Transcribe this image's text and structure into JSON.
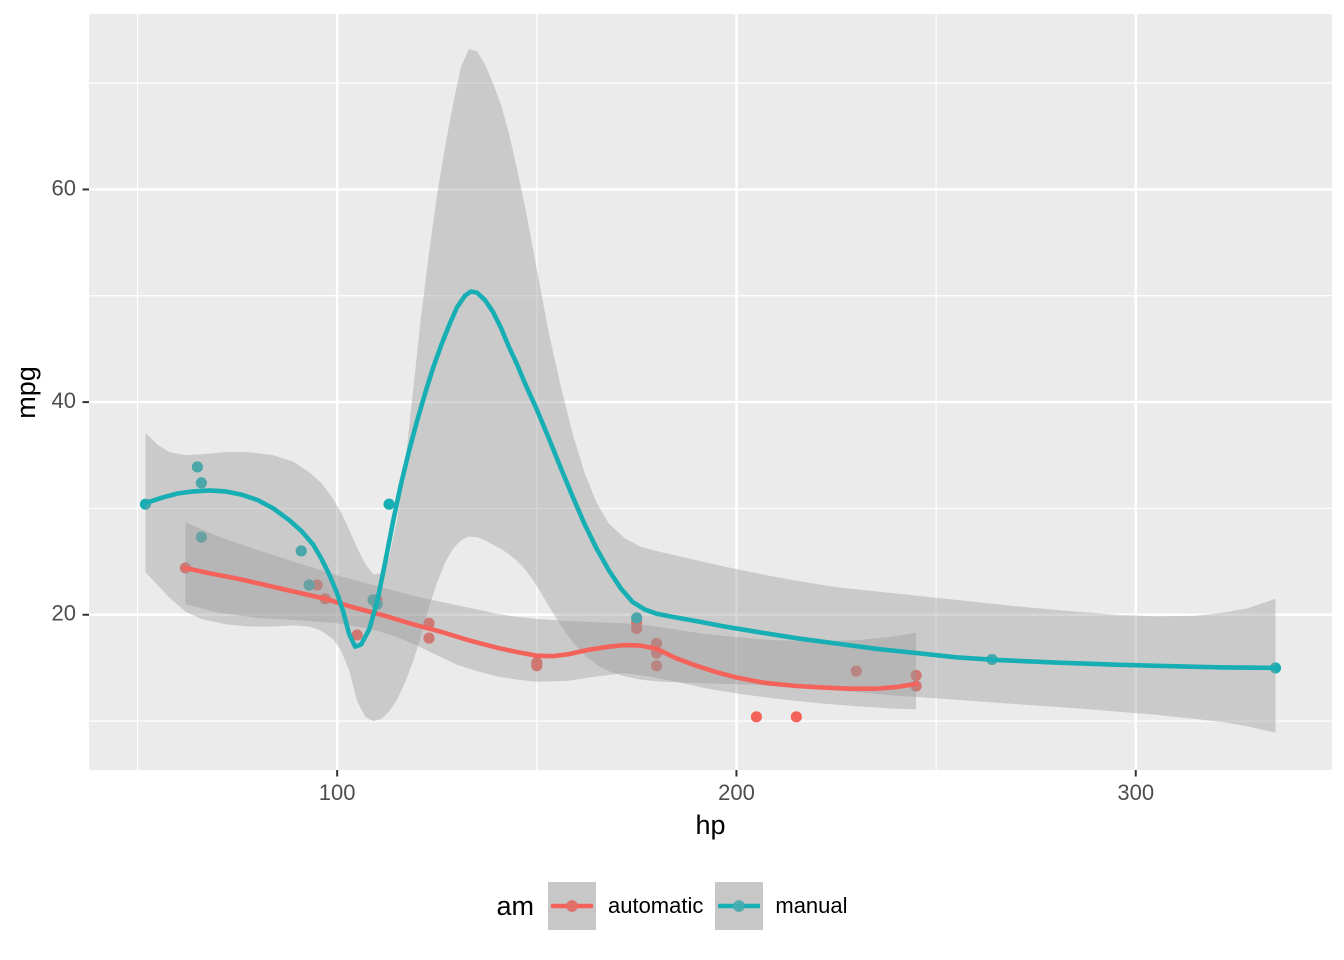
{
  "figure": {
    "background": "#ffffff"
  },
  "chart_data": {
    "type": "scatter",
    "title": "",
    "xlabel": "hp",
    "ylabel": "mpg",
    "xlim": [
      37.85,
      349.15
    ],
    "ylim": [
      5.4,
      76.5
    ],
    "x_major_ticks": [
      100,
      200,
      300
    ],
    "y_major_ticks": [
      20,
      40,
      60
    ],
    "x_minor_ticks": [
      50,
      150,
      250
    ],
    "y_minor_ticks": [
      10,
      30,
      50,
      70
    ],
    "grid": "on",
    "panel_bg": "#EBEBEB",
    "grid_color": "#FFFFFF",
    "ribbon_color": "#999999",
    "ribbon_alpha": 0.4,
    "tick_label_color": "#4D4D4D",
    "tick_mark_color": "#333333",
    "legend": {
      "title": "am",
      "position": "bottom",
      "key_bg": "#C7C7C7",
      "entries": [
        {
          "label": "automatic",
          "color": "#F3635B",
          "dot_color": "#DE7169"
        },
        {
          "label": "manual",
          "color": "#17AFB3",
          "dot_color": "#4FADB0"
        }
      ]
    },
    "series": [
      {
        "name": "automatic",
        "color": "#F3635B",
        "points": [
          [
            62,
            24.4
          ],
          [
            95,
            22.8
          ],
          [
            97,
            21.5
          ],
          [
            105,
            18.1
          ],
          [
            110,
            21.4
          ],
          [
            123,
            19.2
          ],
          [
            123,
            17.8
          ],
          [
            150,
            15.5
          ],
          [
            150,
            15.2
          ],
          [
            175,
            18.7
          ],
          [
            175,
            19.2
          ],
          [
            180,
            16.4
          ],
          [
            180,
            17.3
          ],
          [
            180,
            15.2
          ],
          [
            205,
            10.4
          ],
          [
            215,
            10.4
          ],
          [
            230,
            14.7
          ],
          [
            245,
            14.3
          ],
          [
            245,
            13.3
          ]
        ],
        "smooth_line": [
          [
            62,
            24.4
          ],
          [
            68,
            23.9
          ],
          [
            75,
            23.4
          ],
          [
            82,
            22.8
          ],
          [
            90,
            22.1
          ],
          [
            97,
            21.5
          ],
          [
            105,
            20.6
          ],
          [
            112,
            19.9
          ],
          [
            119,
            19.1
          ],
          [
            126,
            18.4
          ],
          [
            133,
            17.6
          ],
          [
            140,
            16.9
          ],
          [
            145,
            16.5
          ],
          [
            150,
            16.15
          ],
          [
            154,
            16.1
          ],
          [
            158,
            16.3
          ],
          [
            163,
            16.7
          ],
          [
            168,
            17.0
          ],
          [
            172,
            17.15
          ],
          [
            176,
            17.1
          ],
          [
            180,
            16.8
          ],
          [
            185,
            15.9
          ],
          [
            190,
            15.2
          ],
          [
            195,
            14.6
          ],
          [
            200,
            14.1
          ],
          [
            207,
            13.6
          ],
          [
            215,
            13.3
          ],
          [
            222,
            13.15
          ],
          [
            228,
            13.05
          ],
          [
            235,
            13.05
          ],
          [
            240,
            13.2
          ],
          [
            245,
            13.5
          ]
        ],
        "ribbon_upper": [
          [
            62,
            28.7
          ],
          [
            70,
            27.4
          ],
          [
            80,
            26.1
          ],
          [
            90,
            24.9
          ],
          [
            100,
            23.7
          ],
          [
            105,
            23.2
          ],
          [
            110,
            22.7
          ],
          [
            115,
            22.2
          ],
          [
            120,
            21.7
          ],
          [
            125,
            21.3
          ],
          [
            130,
            20.9
          ],
          [
            135,
            20.5
          ],
          [
            140,
            20.1
          ],
          [
            145,
            19.8
          ],
          [
            150,
            19.6
          ],
          [
            158,
            19.4
          ],
          [
            165,
            19.3
          ],
          [
            172,
            19.2
          ],
          [
            178,
            19.0
          ],
          [
            185,
            18.6
          ],
          [
            192,
            18.2
          ],
          [
            200,
            17.9
          ],
          [
            210,
            17.6
          ],
          [
            220,
            17.5
          ],
          [
            230,
            17.6
          ],
          [
            238,
            17.9
          ],
          [
            245,
            18.3
          ]
        ],
        "ribbon_lower": [
          [
            62,
            21.0
          ],
          [
            70,
            20.2
          ],
          [
            80,
            19.7
          ],
          [
            90,
            19.5
          ],
          [
            100,
            19.2
          ],
          [
            105,
            18.9
          ],
          [
            110,
            18.5
          ],
          [
            115,
            17.9
          ],
          [
            120,
            17.1
          ],
          [
            125,
            16.2
          ],
          [
            130,
            15.3
          ],
          [
            135,
            14.7
          ],
          [
            140,
            14.2
          ],
          [
            145,
            13.9
          ],
          [
            150,
            13.7
          ],
          [
            158,
            13.8
          ],
          [
            165,
            14.2
          ],
          [
            172,
            14.5
          ],
          [
            178,
            14.2
          ],
          [
            185,
            13.7
          ],
          [
            192,
            13.1
          ],
          [
            200,
            12.6
          ],
          [
            210,
            12.1
          ],
          [
            220,
            11.7
          ],
          [
            230,
            11.4
          ],
          [
            238,
            11.2
          ],
          [
            245,
            11.1
          ]
        ]
      },
      {
        "name": "manual",
        "color": "#17AFB3",
        "points": [
          [
            52,
            30.4
          ],
          [
            65,
            33.9
          ],
          [
            66,
            32.4
          ],
          [
            66,
            27.3
          ],
          [
            91,
            26.0
          ],
          [
            93,
            22.8
          ],
          [
            109,
            21.4
          ],
          [
            110,
            21.0
          ],
          [
            110,
            21.0
          ],
          [
            113,
            30.4
          ],
          [
            175,
            19.7
          ],
          [
            264,
            15.8
          ],
          [
            335,
            15.0
          ]
        ],
        "smooth_line": [
          [
            52,
            30.5
          ],
          [
            56,
            31.0
          ],
          [
            60,
            31.4
          ],
          [
            64,
            31.6
          ],
          [
            68,
            31.7
          ],
          [
            72,
            31.6
          ],
          [
            76,
            31.3
          ],
          [
            80,
            30.8
          ],
          [
            84,
            30.0
          ],
          [
            88,
            28.9
          ],
          [
            91,
            27.9
          ],
          [
            94,
            26.6
          ],
          [
            96,
            25.3
          ],
          [
            98,
            23.8
          ],
          [
            100,
            22.0
          ],
          [
            101.5,
            20.3
          ],
          [
            103,
            18.2
          ],
          [
            104.5,
            17.0
          ],
          [
            106,
            17.2
          ],
          [
            108,
            18.6
          ],
          [
            110,
            21.2
          ],
          [
            112,
            24.9
          ],
          [
            114,
            28.8
          ],
          [
            116,
            32.3
          ],
          [
            118,
            35.4
          ],
          [
            120,
            38.2
          ],
          [
            122,
            40.8
          ],
          [
            124,
            43.2
          ],
          [
            126,
            45.3
          ],
          [
            128,
            47.2
          ],
          [
            130,
            48.9
          ],
          [
            132,
            50.0
          ],
          [
            133.5,
            50.4
          ],
          [
            135,
            50.3
          ],
          [
            137,
            49.6
          ],
          [
            139,
            48.5
          ],
          [
            141,
            47.0
          ],
          [
            143,
            45.2
          ],
          [
            145,
            43.6
          ],
          [
            147,
            41.8
          ],
          [
            150,
            39.3
          ],
          [
            153,
            36.6
          ],
          [
            156,
            33.8
          ],
          [
            159,
            31.1
          ],
          [
            162,
            28.5
          ],
          [
            165,
            26.2
          ],
          [
            168,
            24.2
          ],
          [
            171,
            22.5
          ],
          [
            174,
            21.2
          ],
          [
            177,
            20.5
          ],
          [
            180,
            20.1
          ],
          [
            184,
            19.8
          ],
          [
            190,
            19.4
          ],
          [
            197,
            18.9
          ],
          [
            205,
            18.4
          ],
          [
            215,
            17.8
          ],
          [
            225,
            17.3
          ],
          [
            235,
            16.8
          ],
          [
            245,
            16.4
          ],
          [
            255,
            16.0
          ],
          [
            265,
            15.75
          ],
          [
            280,
            15.5
          ],
          [
            295,
            15.3
          ],
          [
            310,
            15.15
          ],
          [
            322,
            15.05
          ],
          [
            335,
            15.0
          ]
        ],
        "ribbon_upper": [
          [
            52,
            37.1
          ],
          [
            55,
            36.0
          ],
          [
            58,
            35.3
          ],
          [
            62,
            35.0
          ],
          [
            66,
            35.1
          ],
          [
            72,
            35.3
          ],
          [
            78,
            35.3
          ],
          [
            84,
            35.0
          ],
          [
            89,
            34.4
          ],
          [
            93,
            33.4
          ],
          [
            96,
            32.4
          ],
          [
            99,
            30.9
          ],
          [
            101,
            29.6
          ],
          [
            103,
            28.0
          ],
          [
            105,
            26.3
          ],
          [
            107,
            24.8
          ],
          [
            109,
            23.8
          ],
          [
            111,
            23.9
          ],
          [
            113,
            25.4
          ],
          [
            115,
            29.0
          ],
          [
            117,
            34.0
          ],
          [
            119,
            41.0
          ],
          [
            121,
            48.0
          ],
          [
            123,
            54.0
          ],
          [
            125,
            59.5
          ],
          [
            127,
            64.0
          ],
          [
            129,
            68.0
          ],
          [
            131,
            71.5
          ],
          [
            133,
            73.2
          ],
          [
            135,
            73.0
          ],
          [
            137,
            71.8
          ],
          [
            139,
            70.0
          ],
          [
            141,
            68.0
          ],
          [
            143,
            65.3
          ],
          [
            145,
            62.0
          ],
          [
            147,
            58.5
          ],
          [
            149,
            54.5
          ],
          [
            151,
            50.5
          ],
          [
            153,
            46.5
          ],
          [
            156,
            41.5
          ],
          [
            159,
            37.0
          ],
          [
            162,
            33.3
          ],
          [
            165,
            30.5
          ],
          [
            168,
            28.6
          ],
          [
            172,
            27.2
          ],
          [
            176,
            26.4
          ],
          [
            181,
            25.9
          ],
          [
            188,
            25.3
          ],
          [
            196,
            24.6
          ],
          [
            205,
            23.9
          ],
          [
            215,
            23.2
          ],
          [
            225,
            22.6
          ],
          [
            240,
            22.0
          ],
          [
            255,
            21.4
          ],
          [
            270,
            20.8
          ],
          [
            285,
            20.3
          ],
          [
            295,
            20.0
          ],
          [
            305,
            19.85
          ],
          [
            315,
            19.9
          ],
          [
            322,
            20.2
          ],
          [
            328,
            20.6
          ],
          [
            335,
            21.5
          ]
        ],
        "ribbon_lower": [
          [
            52,
            24.0
          ],
          [
            55,
            22.8
          ],
          [
            58,
            21.6
          ],
          [
            62,
            20.3
          ],
          [
            66,
            19.6
          ],
          [
            72,
            19.1
          ],
          [
            78,
            18.9
          ],
          [
            84,
            18.9
          ],
          [
            89,
            19.0
          ],
          [
            93,
            18.9
          ],
          [
            96,
            18.5
          ],
          [
            99,
            17.7
          ],
          [
            101,
            16.6
          ],
          [
            103,
            14.8
          ],
          [
            105,
            11.9
          ],
          [
            107,
            10.4
          ],
          [
            109,
            10.0
          ],
          [
            111,
            10.2
          ],
          [
            113,
            10.9
          ],
          [
            115,
            12.0
          ],
          [
            117,
            13.6
          ],
          [
            119,
            15.6
          ],
          [
            121,
            18.0
          ],
          [
            123,
            20.7
          ],
          [
            125,
            23.0
          ],
          [
            127,
            24.9
          ],
          [
            129,
            26.2
          ],
          [
            131,
            27.0
          ],
          [
            133,
            27.35
          ],
          [
            135,
            27.3
          ],
          [
            137,
            27.0
          ],
          [
            139,
            26.6
          ],
          [
            141,
            26.2
          ],
          [
            143,
            25.7
          ],
          [
            145,
            25.1
          ],
          [
            147,
            24.3
          ],
          [
            149,
            23.3
          ],
          [
            151,
            22.1
          ],
          [
            153,
            20.8
          ],
          [
            156,
            19.0
          ],
          [
            159,
            17.4
          ],
          [
            162,
            16.2
          ],
          [
            165,
            15.3
          ],
          [
            168,
            14.7
          ],
          [
            172,
            14.2
          ],
          [
            176,
            13.9
          ],
          [
            181,
            13.7
          ],
          [
            188,
            13.6
          ],
          [
            196,
            13.5
          ],
          [
            205,
            13.4
          ],
          [
            215,
            13.2
          ],
          [
            225,
            12.9
          ],
          [
            240,
            12.4
          ],
          [
            255,
            12.0
          ],
          [
            270,
            11.6
          ],
          [
            285,
            11.2
          ],
          [
            295,
            10.9
          ],
          [
            305,
            10.6
          ],
          [
            315,
            10.2
          ],
          [
            322,
            9.9
          ],
          [
            328,
            9.5
          ],
          [
            335,
            8.9
          ]
        ]
      }
    ]
  }
}
